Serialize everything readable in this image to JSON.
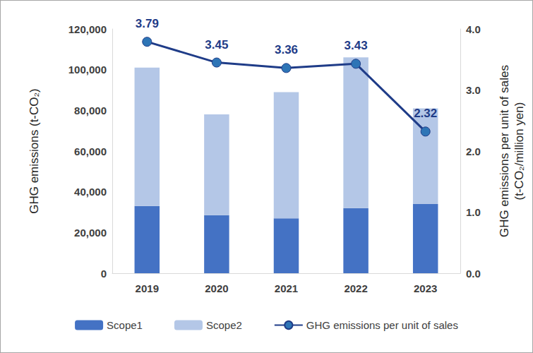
{
  "chart_data": {
    "type": "bar",
    "stacked": true,
    "grid": false,
    "legend": "bottom",
    "categories": [
      "2019",
      "2020",
      "2021",
      "2022",
      "2023"
    ],
    "y_label": "GHG emissions (t-CO₂)",
    "y2_label": "GHG emissions per unit of sales\n(t-CO₂/million yen)",
    "ylim": [
      0,
      120000
    ],
    "yticks": [
      {
        "value": 0,
        "label": "0"
      },
      {
        "value": 20000,
        "label": "20,000"
      },
      {
        "value": 40000,
        "label": "40,000"
      },
      {
        "value": 60000,
        "label": "60,000"
      },
      {
        "value": 80000,
        "label": "80,000"
      },
      {
        "value": 100000,
        "label": "100,000"
      },
      {
        "value": 120000,
        "label": "120,000"
      }
    ],
    "y2lim": [
      0,
      4
    ],
    "y2ticks": [
      {
        "value": 0,
        "label": "0.0"
      },
      {
        "value": 1,
        "label": "1.0"
      },
      {
        "value": 2,
        "label": "2.0"
      },
      {
        "value": 3,
        "label": "3.0"
      },
      {
        "value": 4,
        "label": "4.0"
      }
    ],
    "series": [
      {
        "name": "Scope1",
        "type": "bar",
        "color": "#4472c4",
        "values": [
          33000,
          28500,
          27000,
          32000,
          34000
        ]
      },
      {
        "name": "Scope2",
        "type": "bar",
        "color": "#b4c7e7",
        "values": [
          68000,
          49500,
          62000,
          74000,
          47000
        ]
      },
      {
        "name": "GHG emissions per unit of sales",
        "type": "line",
        "axis": "y2",
        "color": "#1f3c88",
        "marker": "circle",
        "line_style": "solid",
        "data_labels": true,
        "values": [
          3.79,
          3.45,
          3.36,
          3.43,
          2.32
        ]
      }
    ]
  }
}
